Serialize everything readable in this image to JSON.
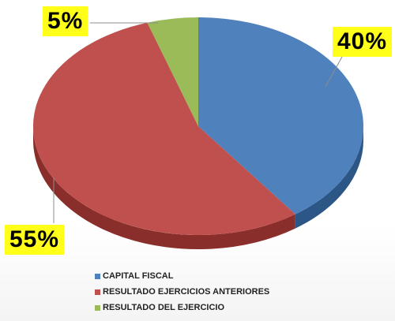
{
  "chart_data": {
    "type": "pie",
    "categories": [
      "CAPITAL FISCAL",
      "RESULTADO EJERCICIOS ANTERIORES",
      "RESULTADO DEL EJERCICIO"
    ],
    "values": [
      40,
      55,
      5
    ],
    "data_labels": [
      "40%",
      "55%",
      "5%"
    ],
    "colors": [
      "#4f81bd",
      "#c0504d",
      "#9bbb59"
    ],
    "dark_colors": [
      "#2c5686",
      "#8a2e2b",
      "#6b8a37"
    ],
    "legend_placement": "bottom",
    "three_d": true
  }
}
